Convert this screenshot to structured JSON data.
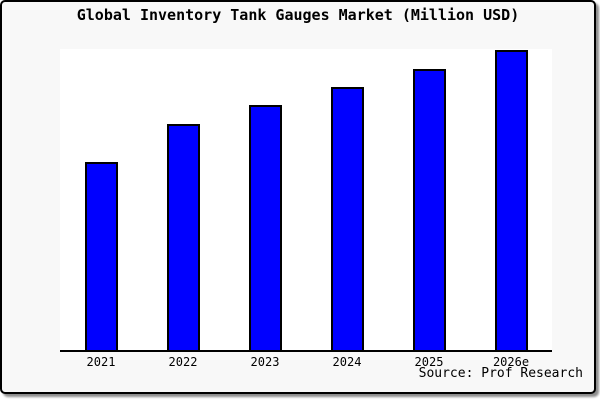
{
  "title": "Global Inventory Tank Gauges Market (Million USD)",
  "source": "Source: Prof Research",
  "colors": {
    "card_background": "#f8f8f8",
    "plot_background": "#ffffff",
    "bar_fill": "#0000ff",
    "bar_border": "#000000",
    "axis": "#000000",
    "frame_border": "#000000",
    "text": "#000000"
  },
  "chart_data": {
    "type": "bar",
    "title": "Global Inventory Tank Gauges Market (Million USD)",
    "categories": [
      "2021",
      "2022",
      "2023",
      "2024",
      "2025",
      "2026e"
    ],
    "values": [
      62.5,
      75.1,
      81.4,
      87.4,
      93.4,
      99.7
    ],
    "values_note": "No numeric y-axis shown in chart; values are bar heights as percent of plot height (tallest bar = 2026e)",
    "xlabel": "",
    "ylabel": "",
    "ylim": [
      0,
      100
    ],
    "grid": false,
    "legend": false,
    "bar_color": "#0000ff",
    "bar_border_color": "#000000"
  }
}
